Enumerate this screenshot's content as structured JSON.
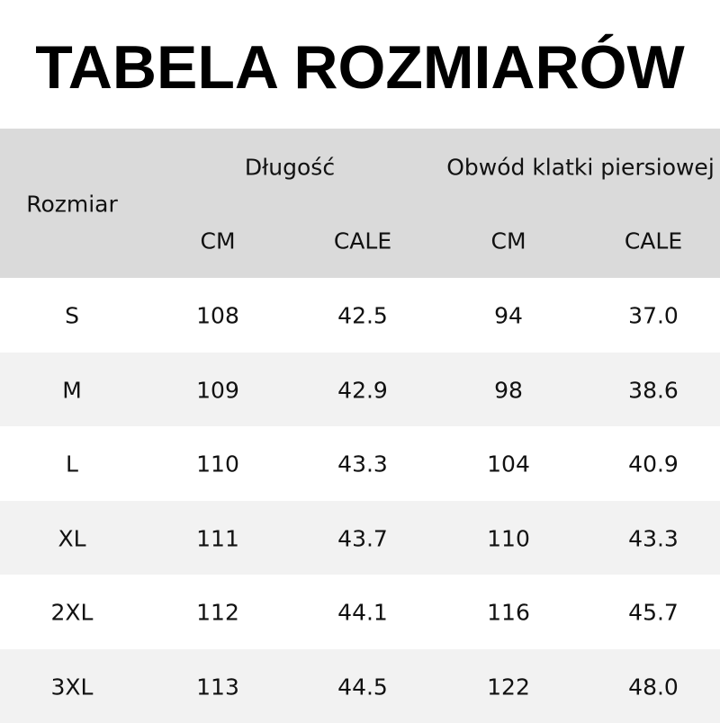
{
  "title": "TABELA ROZMIARÓW",
  "header": {
    "size_label": "Rozmiar",
    "groups": [
      "Długość",
      "Obwód klatki piersiowej"
    ],
    "units": [
      "CM",
      "CALE",
      "CM",
      "CALE"
    ]
  },
  "rows": [
    [
      "S",
      "108",
      "42.5",
      "94",
      "37.0"
    ],
    [
      "M",
      "109",
      "42.9",
      "98",
      "38.6"
    ],
    [
      "L",
      "110",
      "43.3",
      "104",
      "40.9"
    ],
    [
      "XL",
      "111",
      "43.7",
      "110",
      "43.3"
    ],
    [
      "2XL",
      "112",
      "44.1",
      "116",
      "45.7"
    ],
    [
      "3XL",
      "113",
      "44.5",
      "122",
      "48.0"
    ]
  ],
  "colors": {
    "header_bg": "#dadada",
    "alt_row_bg": "#f2f2f2"
  }
}
